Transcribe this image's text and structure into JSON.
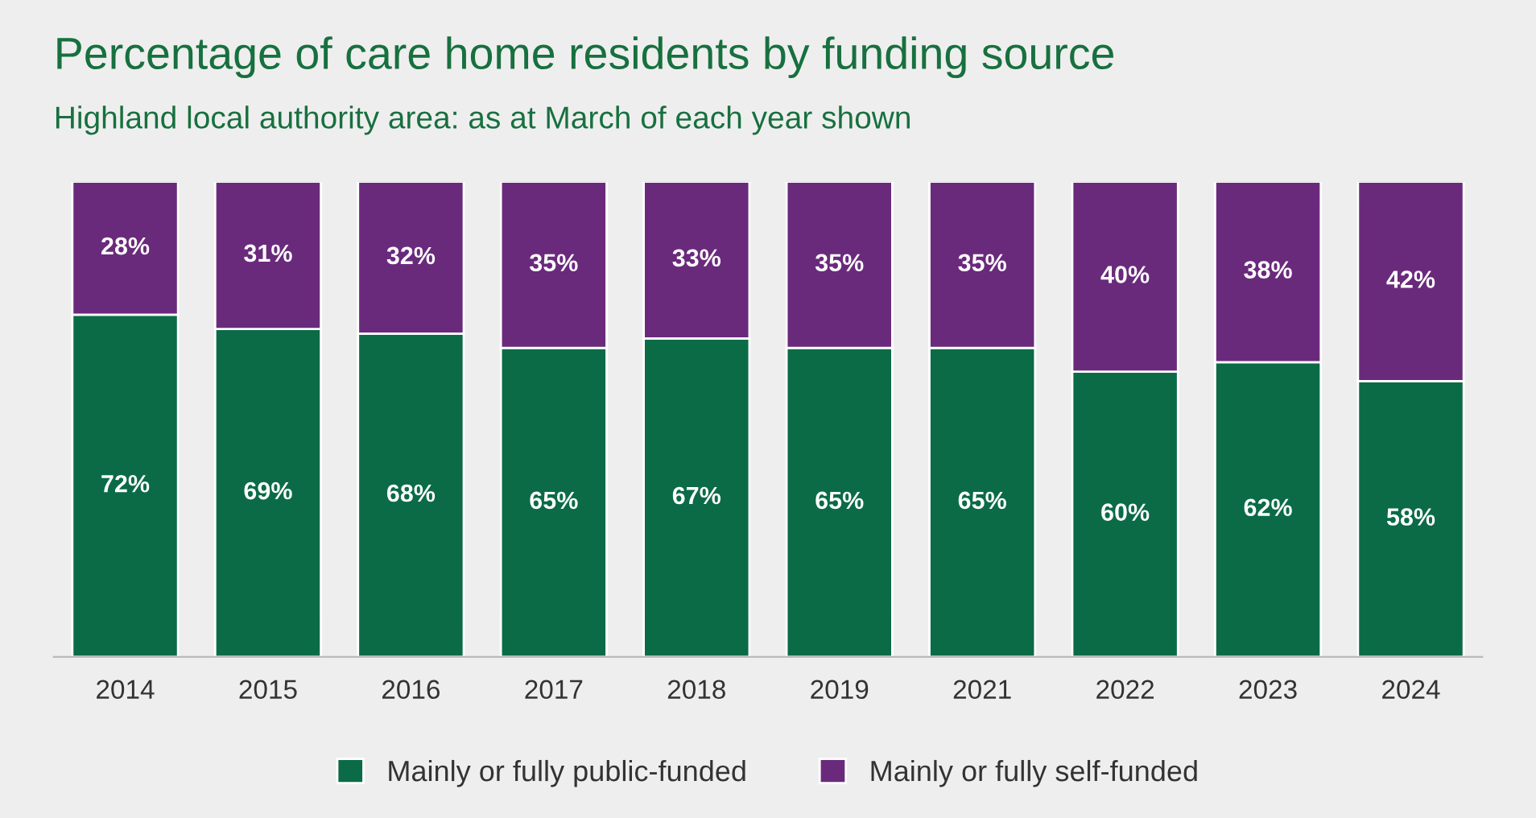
{
  "chart_data": {
    "type": "bar",
    "stacked": true,
    "title": "Percentage of care home residents by funding source",
    "subtitle": "Highland local authority area: as at March of each year shown",
    "categories": [
      "2014",
      "2015",
      "2016",
      "2017",
      "2018",
      "2019",
      "2021",
      "2022",
      "2023",
      "2024"
    ],
    "series": [
      {
        "name": "Mainly or fully public-funded",
        "color": "#0b6b47",
        "values": [
          72,
          69,
          68,
          65,
          67,
          65,
          65,
          60,
          62,
          58
        ],
        "value_labels": [
          "72%",
          "69%",
          "68%",
          "65%",
          "67%",
          "65%",
          "65%",
          "60%",
          "62%",
          "58%"
        ]
      },
      {
        "name": "Mainly or fully self-funded",
        "color": "#6a2a7c",
        "values": [
          28,
          31,
          32,
          35,
          33,
          35,
          35,
          40,
          38,
          42
        ],
        "value_labels": [
          "28%",
          "31%",
          "32%",
          "35%",
          "33%",
          "35%",
          "35%",
          "40%",
          "38%",
          "42%"
        ]
      }
    ],
    "legend": "bottom",
    "grid": false,
    "tick_labels": "x"
  }
}
